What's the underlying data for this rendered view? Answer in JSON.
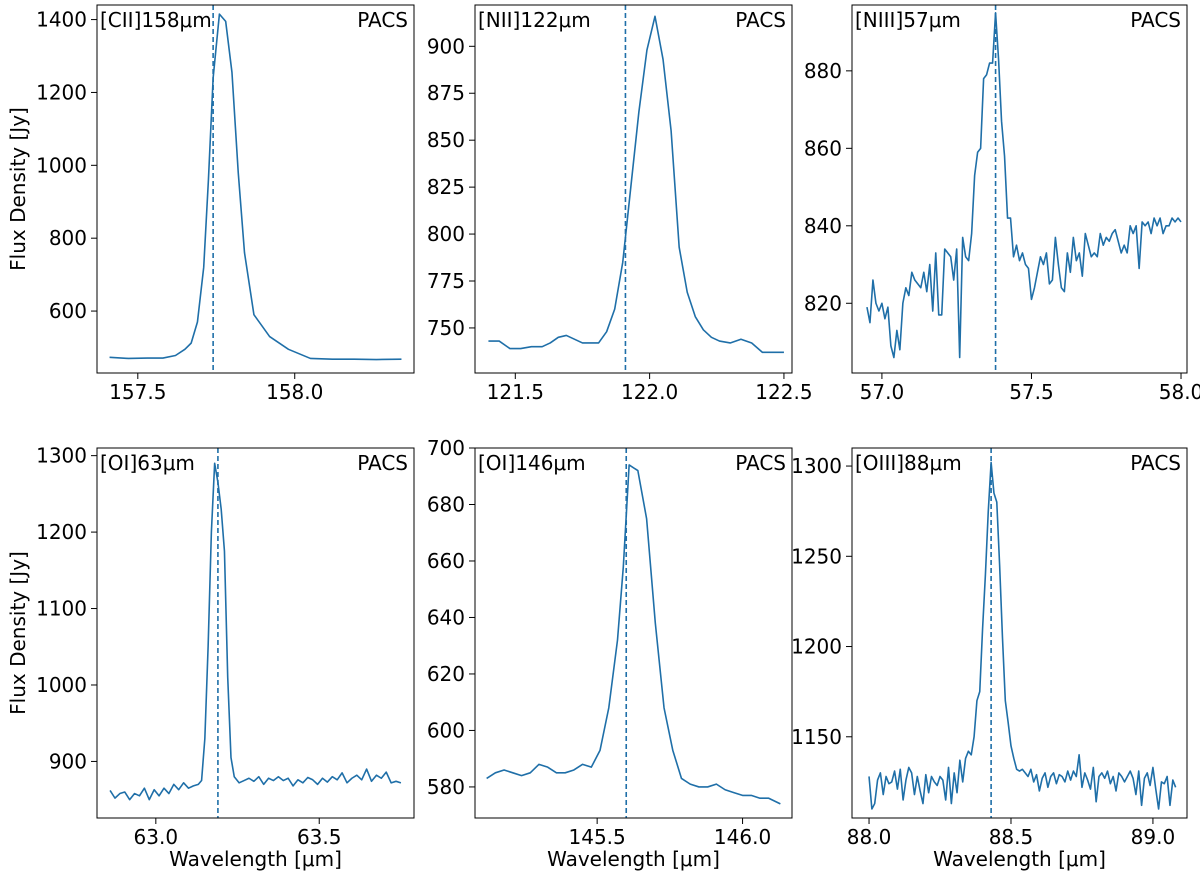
{
  "figure": {
    "ylabel_text": "Flux Density [Jy]",
    "xlabel_text": "Wavelength [μm]"
  },
  "colors": {
    "line": "#1f6fa8",
    "axis": "#000000"
  },
  "chart_data": [
    {
      "type": "line",
      "title": "[CII]158μm",
      "instrument": "PACS",
      "ylabel": "Flux Density [Jy]",
      "xlabel": "",
      "xlim": [
        157.37,
        158.38
      ],
      "ylim": [
        430,
        1440
      ],
      "xticks": [
        157.5,
        158.0
      ],
      "xtick_labels": [
        "157.5",
        "158.0"
      ],
      "yticks": [
        600,
        800,
        1000,
        1200,
        1400
      ],
      "ytick_labels": [
        "600",
        "800",
        "1000",
        1200,
        "1400"
      ],
      "vline": 157.74,
      "x": [
        157.41,
        157.47,
        157.53,
        157.58,
        157.62,
        157.65,
        157.67,
        157.69,
        157.71,
        157.725,
        157.74,
        157.76,
        157.78,
        157.8,
        157.82,
        157.84,
        157.87,
        157.92,
        157.98,
        158.05,
        158.12,
        158.19,
        158.26,
        158.34
      ],
      "y": [
        473,
        470,
        471,
        471,
        478,
        495,
        512,
        570,
        720,
        960,
        1240,
        1415,
        1395,
        1255,
        980,
        760,
        590,
        530,
        495,
        470,
        468,
        468,
        467,
        468
      ]
    },
    {
      "type": "line",
      "title": "[NII]122μm",
      "instrument": "PACS",
      "ylabel": "",
      "xlabel": "",
      "xlim": [
        121.35,
        122.53
      ],
      "ylim": [
        726,
        922
      ],
      "xticks": [
        121.5,
        122.0,
        122.5
      ],
      "xtick_labels": [
        "121.5",
        "122.0",
        "122.5"
      ],
      "yticks": [
        750,
        775,
        800,
        825,
        850,
        875,
        900
      ],
      "ytick_labels": [
        "750",
        "775",
        "800",
        "825",
        "850",
        "875",
        "900"
      ],
      "vline": 121.91,
      "x": [
        121.4,
        121.44,
        121.48,
        121.52,
        121.56,
        121.6,
        121.63,
        121.66,
        121.69,
        121.72,
        121.75,
        121.78,
        121.81,
        121.84,
        121.87,
        121.9,
        121.93,
        121.96,
        121.99,
        122.02,
        122.05,
        122.08,
        122.11,
        122.14,
        122.17,
        122.2,
        122.23,
        122.26,
        122.3,
        122.34,
        122.38,
        122.42,
        122.46,
        122.5
      ],
      "y": [
        743,
        743,
        739,
        739,
        740,
        740,
        742,
        745,
        746,
        744,
        742,
        742,
        742,
        748,
        760,
        785,
        825,
        865,
        898,
        916,
        893,
        855,
        793,
        769,
        756,
        749,
        745,
        743,
        742,
        744,
        742,
        737,
        737,
        737
      ]
    },
    {
      "type": "line",
      "title": "[NIII]57μm",
      "instrument": "PACS",
      "ylabel": "",
      "xlabel": "",
      "xlim": [
        56.9,
        58.02
      ],
      "ylim": [
        802,
        897
      ],
      "xticks": [
        57.0,
        57.5,
        58.0
      ],
      "xtick_labels": [
        "57.0",
        "57.5",
        "58.0"
      ],
      "yticks": [
        820,
        840,
        860,
        880
      ],
      "ytick_labels": [
        "820",
        "840",
        "860",
        "880"
      ],
      "vline": 57.38,
      "x": [
        56.95,
        56.96,
        56.97,
        56.98,
        56.99,
        57.0,
        57.01,
        57.02,
        57.03,
        57.04,
        57.05,
        57.06,
        57.07,
        57.08,
        57.09,
        57.1,
        57.11,
        57.12,
        57.13,
        57.14,
        57.15,
        57.16,
        57.17,
        57.18,
        57.19,
        57.2,
        57.21,
        57.22,
        57.23,
        57.24,
        57.25,
        57.26,
        57.27,
        57.28,
        57.29,
        57.3,
        57.31,
        57.32,
        57.33,
        57.34,
        57.35,
        57.36,
        57.37,
        57.38,
        57.39,
        57.4,
        57.41,
        57.42,
        57.43,
        57.44,
        57.45,
        57.46,
        57.47,
        57.48,
        57.49,
        57.5,
        57.51,
        57.52,
        57.53,
        57.54,
        57.55,
        57.56,
        57.57,
        57.58,
        57.59,
        57.6,
        57.61,
        57.62,
        57.63,
        57.64,
        57.65,
        57.66,
        57.67,
        57.68,
        57.69,
        57.7,
        57.71,
        57.72,
        57.73,
        57.74,
        57.75,
        57.76,
        57.77,
        57.78,
        57.79,
        57.8,
        57.81,
        57.82,
        57.83,
        57.84,
        57.85,
        57.86,
        57.87,
        57.88,
        57.89,
        57.9,
        57.91,
        57.92,
        57.93,
        57.94,
        57.95,
        57.96,
        57.97,
        57.98,
        57.99,
        58.0
      ],
      "y": [
        819,
        815,
        826,
        820,
        818,
        820,
        816,
        819,
        809,
        806,
        813,
        808,
        820,
        824,
        822,
        828,
        826,
        825,
        824,
        828,
        823,
        830,
        818,
        833,
        817,
        817,
        834,
        833,
        832,
        826,
        834,
        806,
        837,
        832,
        831,
        838,
        853,
        859,
        860,
        878,
        879,
        882,
        882,
        895,
        883,
        867,
        858,
        842,
        842,
        832,
        835,
        831,
        833,
        830,
        829,
        821,
        824,
        828,
        832,
        830,
        833,
        825,
        826,
        837,
        830,
        824,
        823,
        833,
        828,
        837,
        831,
        833,
        827,
        838,
        835,
        832,
        833,
        832,
        838,
        835,
        837,
        836,
        838,
        839,
        836,
        833,
        835,
        833,
        840,
        838,
        840,
        829,
        841,
        840,
        841,
        838,
        842,
        840,
        842,
        838,
        840,
        840,
        842,
        841,
        842,
        841
      ]
    },
    {
      "type": "line",
      "title": "[OI]63μm",
      "instrument": "PACS",
      "ylabel": "Flux Density [Jy]",
      "xlabel": "Wavelength [μm]",
      "xlim": [
        62.82,
        63.79
      ],
      "ylim": [
        826,
        1310
      ],
      "xticks": [
        63.0,
        63.5
      ],
      "xtick_labels": [
        "63.0",
        "63.5"
      ],
      "yticks": [
        900,
        1000,
        1100,
        1200,
        1300
      ],
      "ytick_labels": [
        "900",
        "1000",
        "1100",
        "1200",
        "1300"
      ],
      "vline": 63.19,
      "x": [
        62.86,
        62.875,
        62.89,
        62.905,
        62.92,
        62.935,
        62.95,
        62.965,
        62.98,
        62.995,
        63.01,
        63.025,
        63.04,
        63.055,
        63.07,
        63.085,
        63.1,
        63.115,
        63.13,
        63.14,
        63.15,
        63.16,
        63.17,
        63.18,
        63.19,
        63.2,
        63.21,
        63.22,
        63.23,
        63.24,
        63.255,
        63.27,
        63.285,
        63.3,
        63.315,
        63.33,
        63.345,
        63.36,
        63.375,
        63.39,
        63.405,
        63.42,
        63.435,
        63.45,
        63.465,
        63.48,
        63.495,
        63.51,
        63.525,
        63.54,
        63.555,
        63.57,
        63.585,
        63.6,
        63.615,
        63.63,
        63.645,
        63.66,
        63.675,
        63.69,
        63.705,
        63.72,
        63.735,
        63.75
      ],
      "y": [
        862,
        852,
        858,
        860,
        850,
        858,
        855,
        865,
        850,
        863,
        855,
        865,
        858,
        870,
        863,
        872,
        865,
        868,
        870,
        875,
        930,
        1050,
        1200,
        1290,
        1265,
        1230,
        1175,
        1010,
        905,
        880,
        872,
        875,
        878,
        874,
        880,
        870,
        878,
        875,
        880,
        875,
        878,
        868,
        876,
        872,
        879,
        876,
        870,
        878,
        873,
        880,
        876,
        885,
        872,
        878,
        882,
        876,
        890,
        874,
        882,
        878,
        886,
        872,
        874,
        872
      ]
    },
    {
      "type": "line",
      "title": "[OI]146μm",
      "instrument": "PACS",
      "ylabel": "",
      "xlabel": "Wavelength [μm]",
      "xlim": [
        145.08,
        146.17
      ],
      "ylim": [
        569,
        700
      ],
      "xticks": [
        145.5,
        146.0
      ],
      "xtick_labels": [
        "145.5",
        "146.0"
      ],
      "yticks": [
        580,
        600,
        620,
        640,
        660,
        680,
        700
      ],
      "ytick_labels": [
        "580",
        "600",
        "620",
        "640",
        "660",
        "680",
        "700"
      ],
      "vline": 145.6,
      "x": [
        145.12,
        145.15,
        145.18,
        145.21,
        145.24,
        145.27,
        145.3,
        145.33,
        145.36,
        145.39,
        145.42,
        145.45,
        145.48,
        145.51,
        145.54,
        145.57,
        145.59,
        145.61,
        145.64,
        145.67,
        145.7,
        145.73,
        145.76,
        145.79,
        145.82,
        145.85,
        145.88,
        145.91,
        145.94,
        145.97,
        146.0,
        146.03,
        146.06,
        146.09,
        146.13
      ],
      "y": [
        583,
        585,
        586,
        585,
        584,
        585,
        588,
        587,
        585,
        585,
        586,
        588,
        587,
        593,
        608,
        632,
        658,
        694,
        692,
        675,
        638,
        608,
        593,
        583,
        581,
        580,
        580,
        581,
        579,
        578,
        577,
        577,
        576,
        576,
        574
      ]
    },
    {
      "type": "line",
      "title": "[OIII]88μm",
      "instrument": "PACS",
      "ylabel": "",
      "xlabel": "Wavelength [μm]",
      "xlim": [
        87.94,
        89.12
      ],
      "ylim": [
        1105,
        1310
      ],
      "xticks": [
        88.0,
        88.5,
        89.0
      ],
      "xtick_labels": [
        "88.0",
        "88.5",
        "89.0"
      ],
      "yticks": [
        1150,
        1200,
        1250,
        1300
      ],
      "ytick_labels": [
        "1150",
        "1200",
        "1250",
        "1300"
      ],
      "vline": 88.43,
      "x": [
        88.0,
        88.01,
        88.02,
        88.03,
        88.04,
        88.05,
        88.06,
        88.07,
        88.08,
        88.09,
        88.1,
        88.11,
        88.12,
        88.13,
        88.14,
        88.15,
        88.16,
        88.17,
        88.18,
        88.19,
        88.2,
        88.21,
        88.22,
        88.23,
        88.24,
        88.25,
        88.26,
        88.27,
        88.28,
        88.29,
        88.3,
        88.31,
        88.32,
        88.33,
        88.34,
        88.35,
        88.36,
        88.37,
        88.38,
        88.39,
        88.4,
        88.41,
        88.42,
        88.43,
        88.44,
        88.45,
        88.46,
        88.47,
        88.48,
        88.49,
        88.5,
        88.51,
        88.52,
        88.53,
        88.54,
        88.55,
        88.56,
        88.57,
        88.58,
        88.59,
        88.6,
        88.61,
        88.62,
        88.63,
        88.64,
        88.65,
        88.66,
        88.67,
        88.68,
        88.69,
        88.7,
        88.71,
        88.72,
        88.73,
        88.74,
        88.75,
        88.76,
        88.77,
        88.78,
        88.79,
        88.8,
        88.81,
        88.82,
        88.83,
        88.84,
        88.85,
        88.86,
        88.87,
        88.88,
        88.89,
        88.9,
        88.91,
        88.92,
        88.93,
        88.94,
        88.95,
        88.96,
        88.97,
        88.98,
        88.99,
        89.0,
        89.01,
        89.02,
        89.03,
        89.04,
        89.05,
        89.06,
        89.07,
        89.08
      ],
      "y": [
        1128,
        1110,
        1113,
        1126,
        1130,
        1118,
        1128,
        1124,
        1125,
        1131,
        1121,
        1132,
        1115,
        1126,
        1133,
        1130,
        1118,
        1128,
        1120,
        1113,
        1129,
        1119,
        1128,
        1125,
        1123,
        1128,
        1126,
        1115,
        1133,
        1113,
        1130,
        1119,
        1137,
        1125,
        1138,
        1142,
        1140,
        1150,
        1170,
        1175,
        1210,
        1240,
        1275,
        1302,
        1285,
        1280,
        1245,
        1205,
        1170,
        1158,
        1145,
        1138,
        1132,
        1131,
        1132,
        1130,
        1128,
        1132,
        1125,
        1129,
        1120,
        1127,
        1130,
        1122,
        1128,
        1130,
        1124,
        1129,
        1128,
        1125,
        1131,
        1126,
        1131,
        1128,
        1140,
        1122,
        1130,
        1126,
        1121,
        1133,
        1114,
        1128,
        1130,
        1127,
        1131,
        1124,
        1128,
        1120,
        1130,
        1128,
        1125,
        1128,
        1131,
        1127,
        1118,
        1131,
        1112,
        1127,
        1130,
        1123,
        1133,
        1121,
        1110,
        1125,
        1124,
        1128,
        1112,
        1126,
        1122
      ]
    }
  ]
}
